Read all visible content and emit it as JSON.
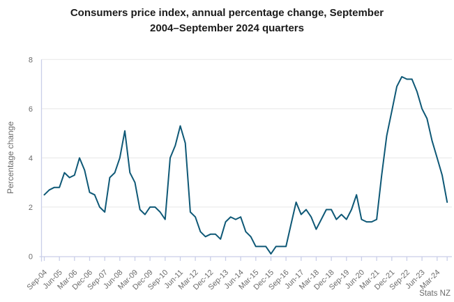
{
  "page": {
    "title_lines": [
      "Consumers price index, annual percentage change, September",
      "2004–September 2024 quarters"
    ],
    "source": "Stats NZ"
  },
  "colors": {
    "line": "#0e5876",
    "grid": "#e7e7e7",
    "axis": "#c9cee8",
    "muted_text": "#6b6b6b",
    "title_text": "#1b1b1b"
  },
  "chart_data": {
    "type": "line",
    "title": "Consumers price index, annual percentage change, September 2004–September 2024 quarters",
    "xlabel": "",
    "ylabel": "Percentage change",
    "source": "Stats NZ",
    "ylim": [
      0,
      8
    ],
    "yticks": [
      0,
      2,
      4,
      6,
      8
    ],
    "grid": "horizontal",
    "legend": "none",
    "x_tick_labels": [
      "Sep-04",
      "Jun-05",
      "Mar-06",
      "Dec-06",
      "Sep-07",
      "Jun-08",
      "Mar-09",
      "Dec-09",
      "Sep-10",
      "Jun-11",
      "Mar-12",
      "Dec-12",
      "Sep-13",
      "Jun-14",
      "Mar-15",
      "Dec-15",
      "Sep-16",
      "Jun-17",
      "Mar-18",
      "Dec-18",
      "Sep-19",
      "Jun-20",
      "Mar-21",
      "Dec-21",
      "Sep-22",
      "Jun-23",
      "Mar-24"
    ],
    "x_tick_every": 3,
    "x": [
      "Sep-04",
      "Dec-04",
      "Mar-05",
      "Jun-05",
      "Sep-05",
      "Dec-05",
      "Mar-06",
      "Jun-06",
      "Sep-06",
      "Dec-06",
      "Mar-07",
      "Jun-07",
      "Sep-07",
      "Dec-07",
      "Mar-08",
      "Jun-08",
      "Sep-08",
      "Dec-08",
      "Mar-09",
      "Jun-09",
      "Sep-09",
      "Dec-09",
      "Mar-10",
      "Jun-10",
      "Sep-10",
      "Dec-10",
      "Mar-11",
      "Jun-11",
      "Sep-11",
      "Dec-11",
      "Mar-12",
      "Jun-12",
      "Sep-12",
      "Dec-12",
      "Mar-13",
      "Jun-13",
      "Sep-13",
      "Dec-13",
      "Mar-14",
      "Jun-14",
      "Sep-14",
      "Dec-14",
      "Mar-15",
      "Jun-15",
      "Sep-15",
      "Dec-15",
      "Mar-16",
      "Jun-16",
      "Sep-16",
      "Dec-16",
      "Mar-17",
      "Jun-17",
      "Sep-17",
      "Dec-17",
      "Mar-18",
      "Jun-18",
      "Sep-18",
      "Dec-18",
      "Mar-19",
      "Jun-19",
      "Sep-19",
      "Dec-19",
      "Mar-20",
      "Jun-20",
      "Sep-20",
      "Dec-20",
      "Mar-21",
      "Jun-21",
      "Sep-21",
      "Dec-21",
      "Mar-22",
      "Jun-22",
      "Sep-22",
      "Dec-22",
      "Mar-23",
      "Jun-23",
      "Sep-23",
      "Dec-23",
      "Mar-24",
      "Jun-24",
      "Sep-24"
    ],
    "values": [
      2.5,
      2.7,
      2.8,
      2.8,
      3.4,
      3.2,
      3.3,
      4.0,
      3.5,
      2.6,
      2.5,
      2.0,
      1.8,
      3.2,
      3.4,
      4.0,
      5.1,
      3.4,
      3.0,
      1.9,
      1.7,
      2.0,
      2.0,
      1.8,
      1.5,
      4.0,
      4.5,
      5.3,
      4.6,
      1.8,
      1.6,
      1.0,
      0.8,
      0.9,
      0.9,
      0.7,
      1.4,
      1.6,
      1.5,
      1.6,
      1.0,
      0.8,
      0.4,
      0.4,
      0.4,
      0.1,
      0.4,
      0.4,
      0.4,
      1.3,
      2.2,
      1.7,
      1.9,
      1.6,
      1.1,
      1.5,
      1.9,
      1.9,
      1.5,
      1.7,
      1.5,
      1.9,
      2.5,
      1.5,
      1.4,
      1.4,
      1.5,
      3.3,
      4.9,
      5.9,
      6.9,
      7.3,
      7.2,
      7.2,
      6.7,
      6.0,
      5.6,
      4.7,
      4.0,
      3.3,
      2.2
    ]
  }
}
